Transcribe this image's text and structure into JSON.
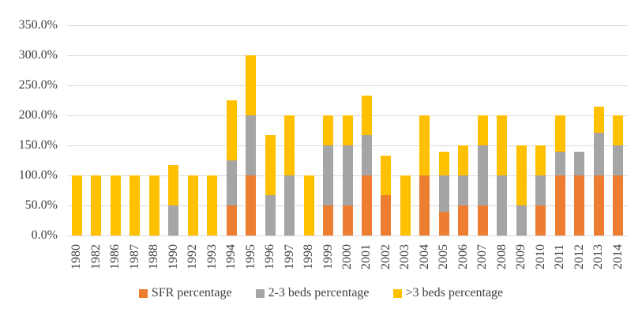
{
  "chart_data": {
    "type": "bar",
    "stacked": true,
    "title": "",
    "xlabel": "",
    "ylabel": "",
    "categories": [
      "1980",
      "1982",
      "1986",
      "1987",
      "1988",
      "1990",
      "1992",
      "1993",
      "1994",
      "1995",
      "1996",
      "1997",
      "1998",
      "1999",
      "2000",
      "2001",
      "2002",
      "2003",
      "2004",
      "2005",
      "2006",
      "2007",
      "2008",
      "2009",
      "2010",
      "2011",
      "2012",
      "2013",
      "2014"
    ],
    "series": [
      {
        "name": "SFR percentage",
        "color": "#ED7D31",
        "values": [
          0,
          0,
          0,
          0,
          0,
          0,
          0,
          0,
          50,
          100,
          0,
          0,
          0,
          50,
          50,
          100,
          66.7,
          0,
          100,
          40,
          50,
          50,
          0,
          0,
          50,
          100,
          100,
          100,
          100
        ]
      },
      {
        "name": "2-3 beds percentage",
        "color": "#A5A5A5",
        "values": [
          0,
          0,
          0,
          0,
          0,
          50,
          0,
          0,
          75,
          100,
          66.7,
          100,
          0,
          100,
          100,
          66.7,
          0,
          0,
          0,
          60,
          50,
          100,
          100,
          50,
          50,
          40,
          40,
          71.4,
          50
        ]
      },
      {
        "name": ">3 beds percentage",
        "color": "#FFC000",
        "values": [
          100,
          100,
          100,
          100,
          100,
          66.7,
          100,
          100,
          100,
          100,
          100,
          100,
          100,
          50,
          50,
          66.7,
          66.7,
          100,
          100,
          40,
          50,
          50,
          100,
          100,
          50,
          60,
          0,
          42.9,
          50
        ]
      }
    ],
    "ylim": [
      0,
      350
    ],
    "ytick_step": 50,
    "ytick_labels": [
      "0.0%",
      "50.0%",
      "100.0%",
      "150.0%",
      "200.0%",
      "250.0%",
      "300.0%",
      "350.0%"
    ],
    "grid": true,
    "legend_position": "bottom"
  },
  "colors": {
    "background": "#FFFFFF",
    "gridline": "#D9D9D9",
    "axis_line": "#D9D9D9",
    "axis_text": "#404040"
  }
}
